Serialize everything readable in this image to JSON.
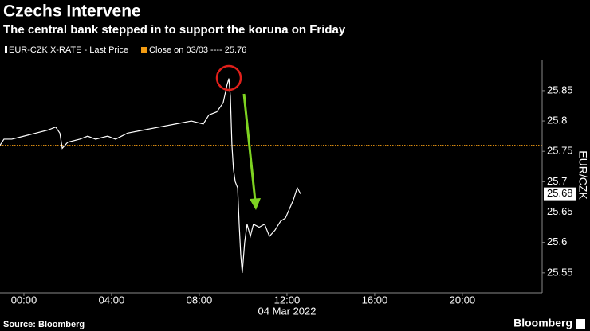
{
  "chart_data": {
    "type": "line",
    "title": "Czechs Intervene",
    "subtitle": "The central bank stepped in to support the koruna on Friday",
    "y_label": "EUR/CZK",
    "date_label": "04 Mar 2022",
    "source": "Source: Bloomberg",
    "brand": "Bloomberg",
    "series": [
      {
        "name": "EUR-CZK X-RATE - Last Price",
        "color": "#ffffff",
        "x": [
          -1.09,
          -0.91,
          -0.55,
          0,
          0.55,
          1.09,
          1.45,
          1.64,
          1.75,
          2.0,
          2.55,
          2.91,
          3.27,
          3.82,
          4.18,
          4.73,
          5.45,
          6.18,
          6.91,
          7.64,
          8.18,
          8.44,
          8.8,
          9.09,
          9.27,
          9.35,
          9.42,
          9.49,
          9.56,
          9.64,
          9.75,
          9.82,
          9.89,
          9.96,
          10.07,
          10.18,
          10.33,
          10.47,
          10.73,
          10.98,
          11.2,
          11.45,
          11.71,
          11.93,
          12.11,
          12.29,
          12.47,
          12.62
        ],
        "values": [
          25.76,
          25.77,
          25.77,
          25.775,
          25.78,
          25.785,
          25.79,
          25.78,
          25.755,
          25.765,
          25.77,
          25.775,
          25.77,
          25.775,
          25.77,
          25.78,
          25.785,
          25.79,
          25.795,
          25.8,
          25.795,
          25.81,
          25.815,
          25.83,
          25.86,
          25.87,
          25.84,
          25.76,
          25.72,
          25.7,
          25.69,
          25.63,
          25.58,
          25.55,
          25.6,
          25.63,
          25.61,
          25.63,
          25.625,
          25.63,
          25.61,
          25.62,
          25.635,
          25.64,
          25.655,
          25.67,
          25.69,
          25.68
        ]
      }
    ],
    "reference_line": {
      "label": "Close on 03/03 ---- 25.76",
      "value": 25.76,
      "color": "#f39c12"
    },
    "xlim": [
      -1.09,
      23.64
    ],
    "xticks": [
      {
        "value": 0,
        "label": "00:00"
      },
      {
        "value": 4,
        "label": "04:00"
      },
      {
        "value": 8,
        "label": "08:00"
      },
      {
        "value": 12,
        "label": "12:00"
      },
      {
        "value": 16,
        "label": "16:00"
      },
      {
        "value": 20,
        "label": "20:00"
      }
    ],
    "ylim": [
      25.517,
      25.901
    ],
    "yticks": [
      25.55,
      25.6,
      25.65,
      25.7,
      25.75,
      25.8,
      25.85
    ],
    "grid": false
  }
}
